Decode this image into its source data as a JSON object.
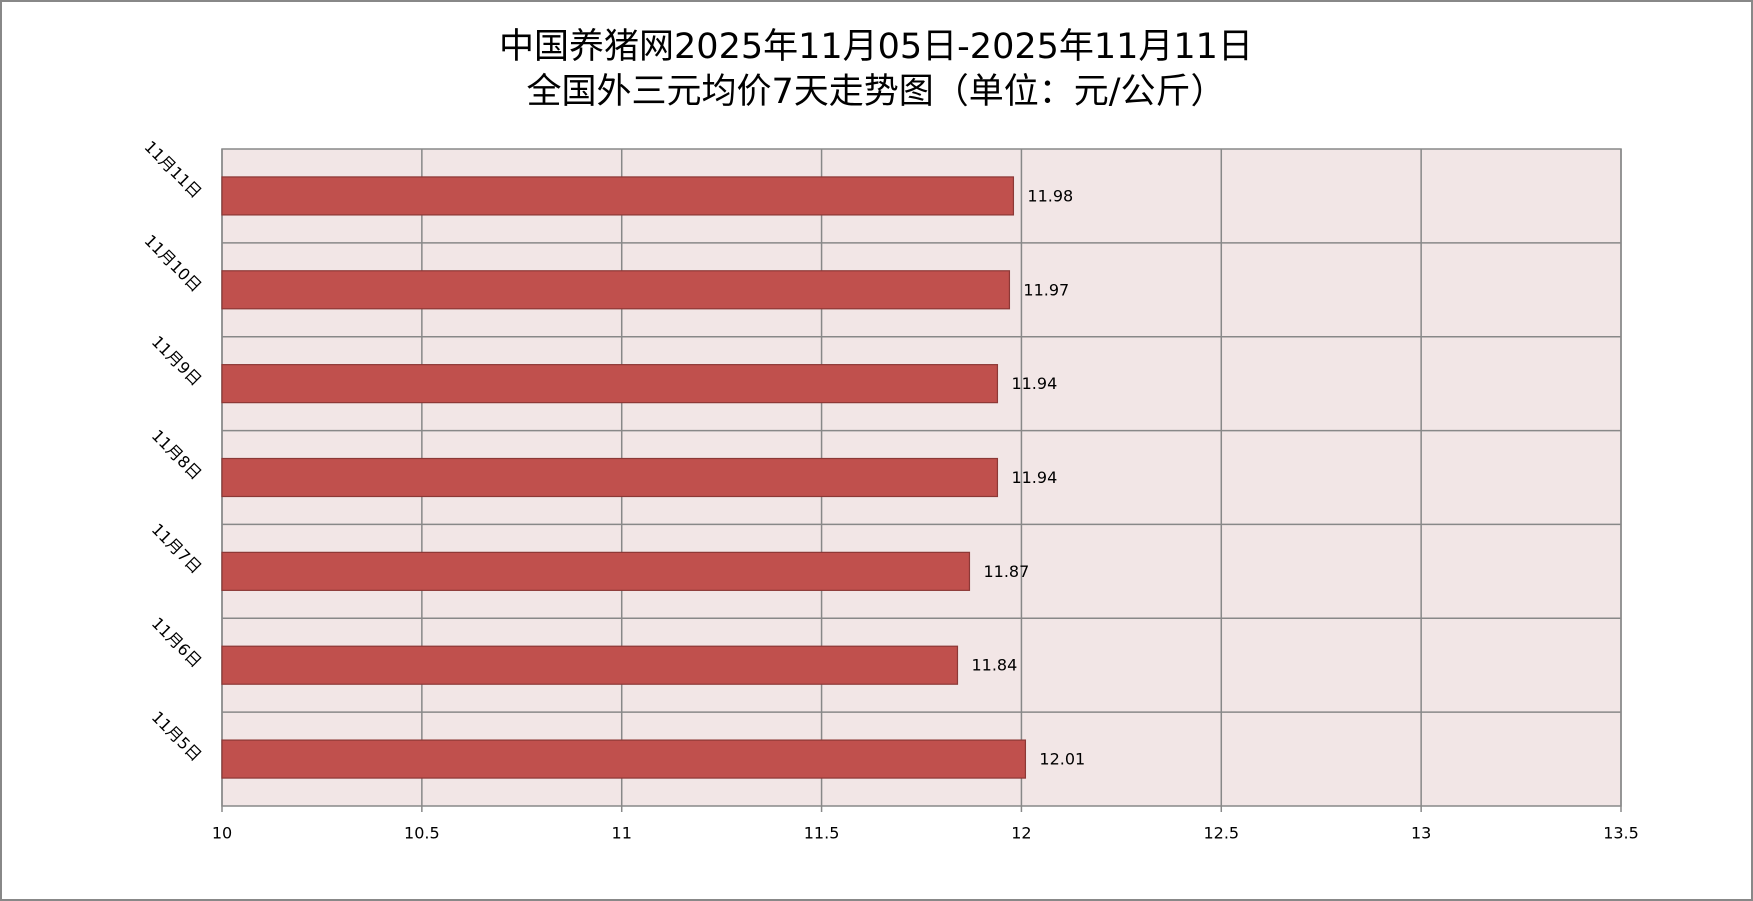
{
  "chart_data": {
    "type": "hbar",
    "title": "中国养猪网2025年11月05日-2025年11月11日",
    "subtitle": "全国外三元均价7天走势图（单位：元/公斤）",
    "categories": [
      "11月5日",
      "11月6日",
      "11月7日",
      "11月8日",
      "11月9日",
      "11月10日",
      "11月11日"
    ],
    "values": [
      12.01,
      11.84,
      11.87,
      11.94,
      11.94,
      11.97,
      11.98
    ],
    "color": "#c0504d",
    "xlim": [
      10,
      13.5
    ],
    "xticks": [
      10,
      10.5,
      11,
      11.5,
      12,
      12.5,
      13,
      13.5
    ],
    "grid": true
  }
}
